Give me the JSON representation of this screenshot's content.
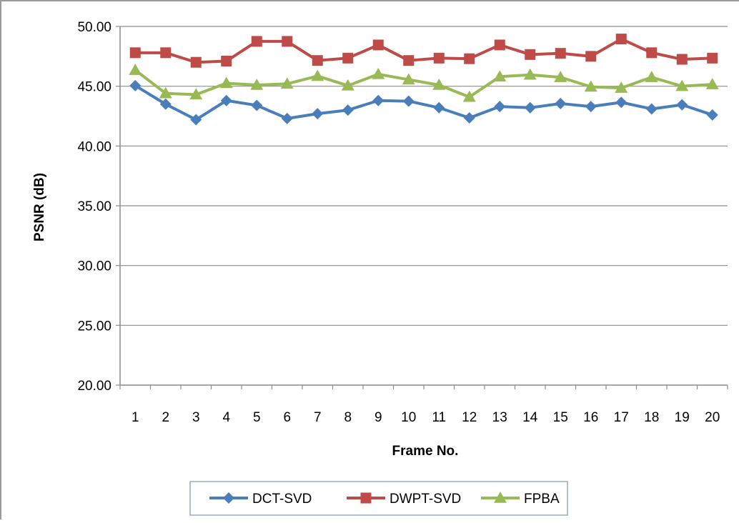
{
  "chart_data": {
    "type": "line",
    "title": "",
    "xlabel": "Frame No.",
    "ylabel": "PSNR (dB)",
    "x": [
      "1",
      "2",
      "3",
      "4",
      "5",
      "6",
      "7",
      "8",
      "9",
      "10",
      "11",
      "12",
      "13",
      "14",
      "15",
      "16",
      "17",
      "18",
      "19",
      "20"
    ],
    "ylim": [
      20,
      50
    ],
    "yticks": [
      "20.00",
      "25.00",
      "30.00",
      "35.00",
      "40.00",
      "45.00",
      "50.00"
    ],
    "grid": "horizontal",
    "legend": "bottom",
    "series": [
      {
        "name": "DCT-SVD",
        "color": "#4a7ebb",
        "marker": "diamond",
        "values": [
          45.05,
          43.5,
          42.2,
          43.8,
          43.4,
          42.3,
          42.7,
          43.0,
          43.8,
          43.75,
          43.2,
          42.35,
          43.3,
          43.2,
          43.55,
          43.3,
          43.65,
          43.1,
          43.45,
          42.6
        ]
      },
      {
        "name": "DWPT-SVD",
        "color": "#be4b48",
        "marker": "square",
        "values": [
          47.8,
          47.8,
          47.0,
          47.1,
          48.75,
          48.75,
          47.15,
          47.35,
          48.45,
          47.15,
          47.35,
          47.3,
          48.45,
          47.65,
          47.75,
          47.5,
          48.95,
          47.8,
          47.25,
          47.35
        ]
      },
      {
        "name": "FPBA",
        "color": "#98b954",
        "marker": "triangle",
        "values": [
          46.35,
          44.4,
          44.3,
          45.25,
          45.1,
          45.2,
          45.85,
          45.05,
          46.0,
          45.55,
          45.1,
          44.1,
          45.8,
          45.95,
          45.75,
          44.95,
          44.85,
          45.75,
          45.0,
          45.15
        ]
      }
    ]
  }
}
